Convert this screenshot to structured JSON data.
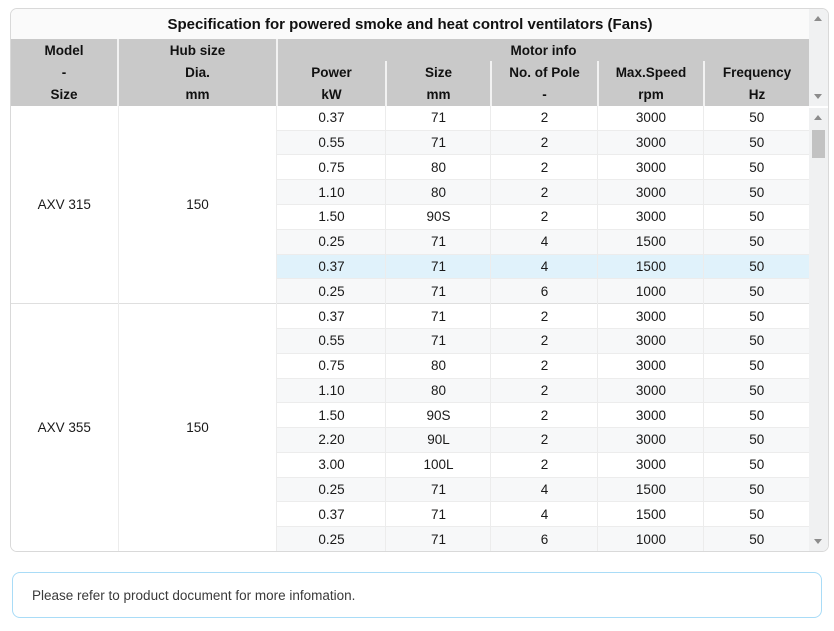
{
  "title": "Specification for powered smoke and heat control ventilators (Fans)",
  "table": {
    "header": {
      "model_lines": [
        "Model",
        "-",
        "Size"
      ],
      "hub_lines": [
        "Hub size",
        "Dia.",
        "mm"
      ],
      "motor_group_label": "Motor info",
      "motor_columns": [
        {
          "label": "Power",
          "unit": "kW"
        },
        {
          "label": "Size",
          "unit": "mm"
        },
        {
          "label": "No. of Pole",
          "unit": "-"
        },
        {
          "label": "Max.Speed",
          "unit": "rpm"
        },
        {
          "label": "Frequency",
          "unit": "Hz"
        }
      ]
    },
    "sections": [
      {
        "model": "AXV 315",
        "hub_size": "150",
        "rows": [
          [
            "0.37",
            "71",
            "2",
            "3000",
            "50"
          ],
          [
            "0.55",
            "71",
            "2",
            "3000",
            "50"
          ],
          [
            "0.75",
            "80",
            "2",
            "3000",
            "50"
          ],
          [
            "1.10",
            "80",
            "2",
            "3000",
            "50"
          ],
          [
            "1.50",
            "90S",
            "2",
            "3000",
            "50"
          ],
          [
            "0.25",
            "71",
            "4",
            "1500",
            "50"
          ],
          [
            "0.37",
            "71",
            "4",
            "1500",
            "50"
          ],
          [
            "0.25",
            "71",
            "6",
            "1000",
            "50"
          ]
        ]
      },
      {
        "model": "AXV 355",
        "hub_size": "150",
        "rows": [
          [
            "0.37",
            "71",
            "2",
            "3000",
            "50"
          ],
          [
            "0.55",
            "71",
            "2",
            "3000",
            "50"
          ],
          [
            "0.75",
            "80",
            "2",
            "3000",
            "50"
          ],
          [
            "1.10",
            "80",
            "2",
            "3000",
            "50"
          ],
          [
            "1.50",
            "90S",
            "2",
            "3000",
            "50"
          ],
          [
            "2.20",
            "90L",
            "2",
            "3000",
            "50"
          ],
          [
            "3.00",
            "100L",
            "2",
            "3000",
            "50"
          ],
          [
            "0.25",
            "71",
            "4",
            "1500",
            "50"
          ],
          [
            "0.37",
            "71",
            "4",
            "1500",
            "50"
          ],
          [
            "0.25",
            "71",
            "6",
            "1000",
            "50"
          ]
        ]
      }
    ],
    "highlight": {
      "section_index": 0,
      "row_index": 6
    }
  },
  "note": {
    "text": "Please refer to product document for more infomation."
  },
  "colors": {
    "header_bg": "#c9c9c9",
    "title_bg": "#fafafa",
    "highlight_row": "#e0f2fb",
    "stripe_row": "#f7f8f9",
    "note_border": "#a9dcf7",
    "card_border": "#d9d9d9",
    "scroll_track": "#f0f1f2",
    "scroll_thumb": "#c2c2c2"
  }
}
